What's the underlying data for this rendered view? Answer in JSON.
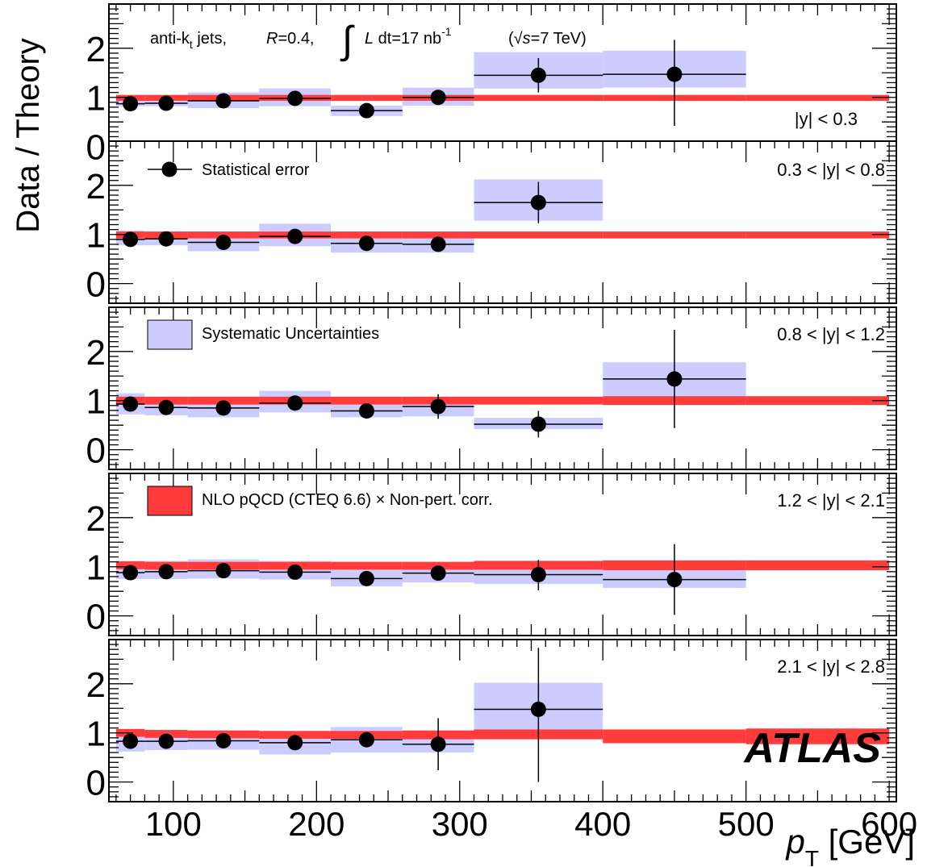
{
  "chart_data": {
    "type": "scatter",
    "ylabel": "Data / Theory",
    "xlabel_main": "p",
    "xlabel_sub": "T",
    "xlabel_unit": " [GeV]",
    "xlim": [
      55,
      605
    ],
    "ylim": [
      -0.4,
      2.9
    ],
    "x_ticks": [
      100,
      200,
      300,
      400,
      500,
      600
    ],
    "y_ticks": [
      0,
      1,
      2
    ],
    "info": {
      "jets_pre": "anti-k",
      "jets_sub": "t",
      "jets_post": " jets,",
      "r_sym": "R",
      "r_val": "=0.4,",
      "int_sym": "∫",
      "lumi_sym": "L",
      "lumi_val": " dt=17 nb",
      "lumi_exp": "-1",
      "energy_open": "(√",
      "energy_sym": "s",
      "energy_val": "=7 TeV)"
    },
    "legend": [
      {
        "name": "Statistical error",
        "marker": "circle"
      },
      {
        "name": "Systematic Uncertainties",
        "marker": "box",
        "color": "#ccccff"
      },
      {
        "name": "NLO pQCD (CTEQ 6.6) × Non-pert. corr.",
        "marker": "box",
        "color": "#ff3b3b"
      }
    ],
    "watermark": "ATLAS",
    "colors": {
      "systematic": "#ccccff",
      "theory": "#ff3b3b",
      "data": "#000000"
    },
    "bins": [
      [
        60,
        80
      ],
      [
        80,
        110
      ],
      [
        110,
        160
      ],
      [
        160,
        210
      ],
      [
        210,
        260
      ],
      [
        260,
        310
      ],
      [
        310,
        400
      ],
      [
        400,
        500
      ],
      [
        500,
        600
      ]
    ],
    "panels": [
      {
        "rapidity": "|y| < 0.3",
        "data": [
          {
            "x": 70,
            "y": 0.87,
            "xlo": 60,
            "xhi": 80,
            "stat_lo": 0.08,
            "stat_hi": 0.08,
            "sys_lo": 0.82,
            "sys_hi": 0.93
          },
          {
            "x": 95,
            "y": 0.88,
            "xlo": 80,
            "xhi": 110,
            "stat_lo": 0.05,
            "stat_hi": 0.05,
            "sys_lo": 0.82,
            "sys_hi": 0.95
          },
          {
            "x": 135,
            "y": 0.93,
            "xlo": 110,
            "xhi": 160,
            "stat_lo": 0.05,
            "stat_hi": 0.05,
            "sys_lo": 0.78,
            "sys_hi": 1.1
          },
          {
            "x": 185,
            "y": 0.98,
            "xlo": 160,
            "xhi": 210,
            "stat_lo": 0.05,
            "stat_hi": 0.05,
            "sys_lo": 0.82,
            "sys_hi": 1.18
          },
          {
            "x": 235,
            "y": 0.73,
            "xlo": 210,
            "xhi": 260,
            "stat_lo": 0.05,
            "stat_hi": 0.05,
            "sys_lo": 0.62,
            "sys_hi": 0.83
          },
          {
            "x": 285,
            "y": 1.0,
            "xlo": 260,
            "xhi": 310,
            "stat_lo": 0.1,
            "stat_hi": 0.1,
            "sys_lo": 0.83,
            "sys_hi": 1.2
          },
          {
            "x": 355,
            "y": 1.45,
            "xlo": 310,
            "xhi": 400,
            "stat_lo": 0.35,
            "stat_hi": 0.35,
            "sys_lo": 1.18,
            "sys_hi": 1.92
          },
          {
            "x": 450,
            "y": 1.47,
            "xlo": 400,
            "xhi": 500,
            "stat_lo": 1.05,
            "stat_hi": 0.7,
            "sys_lo": 1.2,
            "sys_hi": 1.95
          }
        ],
        "theory": [
          {
            "xlo": 60,
            "xhi": 80,
            "y": 0.99,
            "half": 0.06
          },
          {
            "xlo": 80,
            "xhi": 110,
            "y": 0.99,
            "half": 0.06
          },
          {
            "xlo": 110,
            "xhi": 160,
            "y": 0.99,
            "half": 0.06
          },
          {
            "xlo": 160,
            "xhi": 210,
            "y": 0.99,
            "half": 0.06
          },
          {
            "xlo": 210,
            "xhi": 260,
            "y": 0.99,
            "half": 0.06
          },
          {
            "xlo": 260,
            "xhi": 310,
            "y": 0.99,
            "half": 0.06
          },
          {
            "xlo": 310,
            "xhi": 400,
            "y": 0.99,
            "half": 0.06
          },
          {
            "xlo": 400,
            "xhi": 500,
            "y": 0.99,
            "half": 0.06
          },
          {
            "xlo": 500,
            "xhi": 600,
            "y": 0.99,
            "half": 0.06
          }
        ]
      },
      {
        "rapidity": "0.3 < |y| < 0.8",
        "data": [
          {
            "x": 70,
            "y": 0.9,
            "xlo": 60,
            "xhi": 80,
            "stat_lo": 0.06,
            "stat_hi": 0.06,
            "sys_lo": 0.78,
            "sys_hi": 1.08
          },
          {
            "x": 95,
            "y": 0.91,
            "xlo": 80,
            "xhi": 110,
            "stat_lo": 0.05,
            "stat_hi": 0.05,
            "sys_lo": 0.78,
            "sys_hi": 1.05
          },
          {
            "x": 135,
            "y": 0.84,
            "xlo": 110,
            "xhi": 160,
            "stat_lo": 0.05,
            "stat_hi": 0.05,
            "sys_lo": 0.66,
            "sys_hi": 1.0
          },
          {
            "x": 185,
            "y": 0.96,
            "xlo": 160,
            "xhi": 210,
            "stat_lo": 0.05,
            "stat_hi": 0.05,
            "sys_lo": 0.76,
            "sys_hi": 1.22
          },
          {
            "x": 235,
            "y": 0.82,
            "xlo": 210,
            "xhi": 260,
            "stat_lo": 0.06,
            "stat_hi": 0.06,
            "sys_lo": 0.63,
            "sys_hi": 0.98
          },
          {
            "x": 285,
            "y": 0.8,
            "xlo": 260,
            "xhi": 310,
            "stat_lo": 0.1,
            "stat_hi": 0.1,
            "sys_lo": 0.63,
            "sys_hi": 0.96
          },
          {
            "x": 355,
            "y": 1.65,
            "xlo": 310,
            "xhi": 400,
            "stat_lo": 0.42,
            "stat_hi": 0.42,
            "sys_lo": 1.28,
            "sys_hi": 2.12
          }
        ],
        "theory": [
          {
            "xlo": 60,
            "xhi": 80,
            "y": 0.99,
            "half": 0.07
          },
          {
            "xlo": 80,
            "xhi": 110,
            "y": 0.99,
            "half": 0.07
          },
          {
            "xlo": 110,
            "xhi": 160,
            "y": 0.99,
            "half": 0.07
          },
          {
            "xlo": 160,
            "xhi": 210,
            "y": 0.99,
            "half": 0.07
          },
          {
            "xlo": 210,
            "xhi": 260,
            "y": 0.99,
            "half": 0.07
          },
          {
            "xlo": 260,
            "xhi": 310,
            "y": 0.99,
            "half": 0.07
          },
          {
            "xlo": 310,
            "xhi": 400,
            "y": 0.99,
            "half": 0.07
          },
          {
            "xlo": 400,
            "xhi": 500,
            "y": 0.99,
            "half": 0.07
          },
          {
            "xlo": 500,
            "xhi": 600,
            "y": 0.99,
            "half": 0.07
          }
        ]
      },
      {
        "rapidity": "0.8 < |y| < 1.2",
        "data": [
          {
            "x": 70,
            "y": 0.93,
            "xlo": 60,
            "xhi": 80,
            "stat_lo": 0.06,
            "stat_hi": 0.06,
            "sys_lo": 0.72,
            "sys_hi": 1.15
          },
          {
            "x": 95,
            "y": 0.86,
            "xlo": 80,
            "xhi": 110,
            "stat_lo": 0.05,
            "stat_hi": 0.05,
            "sys_lo": 0.7,
            "sys_hi": 1.05
          },
          {
            "x": 135,
            "y": 0.85,
            "xlo": 110,
            "xhi": 160,
            "stat_lo": 0.05,
            "stat_hi": 0.05,
            "sys_lo": 0.66,
            "sys_hi": 1.02
          },
          {
            "x": 185,
            "y": 0.95,
            "xlo": 160,
            "xhi": 210,
            "stat_lo": 0.05,
            "stat_hi": 0.05,
            "sys_lo": 0.76,
            "sys_hi": 1.2
          },
          {
            "x": 235,
            "y": 0.79,
            "xlo": 210,
            "xhi": 260,
            "stat_lo": 0.06,
            "stat_hi": 0.06,
            "sys_lo": 0.66,
            "sys_hi": 0.96
          },
          {
            "x": 285,
            "y": 0.88,
            "xlo": 260,
            "xhi": 310,
            "stat_lo": 0.25,
            "stat_hi": 0.25,
            "sys_lo": 0.68,
            "sys_hi": 1.05
          },
          {
            "x": 355,
            "y": 0.52,
            "xlo": 310,
            "xhi": 400,
            "stat_lo": 0.27,
            "stat_hi": 0.27,
            "sys_lo": 0.42,
            "sys_hi": 0.65
          },
          {
            "x": 450,
            "y": 1.44,
            "xlo": 400,
            "xhi": 500,
            "stat_lo": 1.0,
            "stat_hi": 1.0,
            "sys_lo": 1.08,
            "sys_hi": 1.78
          }
        ],
        "theory": [
          {
            "xlo": 60,
            "xhi": 80,
            "y": 1.0,
            "half": 0.08
          },
          {
            "xlo": 80,
            "xhi": 110,
            "y": 1.0,
            "half": 0.08
          },
          {
            "xlo": 110,
            "xhi": 160,
            "y": 1.0,
            "half": 0.08
          },
          {
            "xlo": 160,
            "xhi": 210,
            "y": 1.0,
            "half": 0.08
          },
          {
            "xlo": 210,
            "xhi": 260,
            "y": 1.0,
            "half": 0.08
          },
          {
            "xlo": 260,
            "xhi": 310,
            "y": 1.0,
            "half": 0.08
          },
          {
            "xlo": 310,
            "xhi": 400,
            "y": 1.0,
            "half": 0.08
          },
          {
            "xlo": 400,
            "xhi": 500,
            "y": 1.0,
            "half": 0.09
          },
          {
            "xlo": 500,
            "xhi": 600,
            "y": 1.0,
            "half": 0.09
          }
        ]
      },
      {
        "rapidity": "1.2 < |y| < 2.1",
        "data": [
          {
            "x": 70,
            "y": 0.88,
            "xlo": 60,
            "xhi": 80,
            "stat_lo": 0.05,
            "stat_hi": 0.05,
            "sys_lo": 0.75,
            "sys_hi": 1.12
          },
          {
            "x": 95,
            "y": 0.9,
            "xlo": 80,
            "xhi": 110,
            "stat_lo": 0.05,
            "stat_hi": 0.05,
            "sys_lo": 0.75,
            "sys_hi": 1.12
          },
          {
            "x": 135,
            "y": 0.92,
            "xlo": 110,
            "xhi": 160,
            "stat_lo": 0.05,
            "stat_hi": 0.05,
            "sys_lo": 0.76,
            "sys_hi": 1.15
          },
          {
            "x": 185,
            "y": 0.89,
            "xlo": 160,
            "xhi": 210,
            "stat_lo": 0.05,
            "stat_hi": 0.05,
            "sys_lo": 0.74,
            "sys_hi": 1.12
          },
          {
            "x": 235,
            "y": 0.76,
            "xlo": 210,
            "xhi": 260,
            "stat_lo": 0.06,
            "stat_hi": 0.06,
            "sys_lo": 0.6,
            "sys_hi": 0.95
          },
          {
            "x": 285,
            "y": 0.87,
            "xlo": 260,
            "xhi": 310,
            "stat_lo": 0.12,
            "stat_hi": 0.12,
            "sys_lo": 0.68,
            "sys_hi": 1.08
          },
          {
            "x": 355,
            "y": 0.84,
            "xlo": 310,
            "xhi": 400,
            "stat_lo": 0.32,
            "stat_hi": 0.3,
            "sys_lo": 0.65,
            "sys_hi": 1.05
          },
          {
            "x": 450,
            "y": 0.74,
            "xlo": 400,
            "xhi": 500,
            "stat_lo": 0.72,
            "stat_hi": 0.72,
            "sys_lo": 0.57,
            "sys_hi": 0.95
          }
        ],
        "theory": [
          {
            "xlo": 60,
            "xhi": 80,
            "y": 1.03,
            "half": 0.08
          },
          {
            "xlo": 80,
            "xhi": 110,
            "y": 1.02,
            "half": 0.08
          },
          {
            "xlo": 110,
            "xhi": 160,
            "y": 1.02,
            "half": 0.08
          },
          {
            "xlo": 160,
            "xhi": 210,
            "y": 1.02,
            "half": 0.08
          },
          {
            "xlo": 210,
            "xhi": 260,
            "y": 1.02,
            "half": 0.08
          },
          {
            "xlo": 260,
            "xhi": 310,
            "y": 1.02,
            "half": 0.08
          },
          {
            "xlo": 310,
            "xhi": 400,
            "y": 1.03,
            "half": 0.09
          },
          {
            "xlo": 400,
            "xhi": 500,
            "y": 1.03,
            "half": 0.1
          },
          {
            "xlo": 500,
            "xhi": 600,
            "y": 1.03,
            "half": 0.1
          }
        ]
      },
      {
        "rapidity": "2.1 < |y| < 2.8",
        "data": [
          {
            "x": 70,
            "y": 0.83,
            "xlo": 60,
            "xhi": 80,
            "stat_lo": 0.05,
            "stat_hi": 0.05,
            "sys_lo": 0.62,
            "sys_hi": 1.02
          },
          {
            "x": 95,
            "y": 0.83,
            "xlo": 80,
            "xhi": 110,
            "stat_lo": 0.05,
            "stat_hi": 0.05,
            "sys_lo": 0.65,
            "sys_hi": 1.0
          },
          {
            "x": 135,
            "y": 0.84,
            "xlo": 110,
            "xhi": 160,
            "stat_lo": 0.06,
            "stat_hi": 0.06,
            "sys_lo": 0.66,
            "sys_hi": 1.02
          },
          {
            "x": 185,
            "y": 0.8,
            "xlo": 160,
            "xhi": 210,
            "stat_lo": 0.08,
            "stat_hi": 0.08,
            "sys_lo": 0.56,
            "sys_hi": 1.0
          },
          {
            "x": 235,
            "y": 0.86,
            "xlo": 210,
            "xhi": 260,
            "stat_lo": 0.12,
            "stat_hi": 0.12,
            "sys_lo": 0.6,
            "sys_hi": 1.12
          },
          {
            "x": 285,
            "y": 0.77,
            "xlo": 260,
            "xhi": 310,
            "stat_lo": 0.53,
            "stat_hi": 0.53,
            "sys_lo": 0.6,
            "sys_hi": 0.92
          },
          {
            "x": 355,
            "y": 1.48,
            "xlo": 310,
            "xhi": 400,
            "stat_lo": 1.48,
            "stat_hi": 1.25,
            "sys_lo": 1.05,
            "sys_hi": 2.02
          }
        ],
        "theory": [
          {
            "xlo": 60,
            "xhi": 80,
            "y": 1.0,
            "half": 0.08
          },
          {
            "xlo": 80,
            "xhi": 110,
            "y": 0.98,
            "half": 0.08
          },
          {
            "xlo": 110,
            "xhi": 160,
            "y": 0.97,
            "half": 0.08
          },
          {
            "xlo": 160,
            "xhi": 210,
            "y": 0.96,
            "half": 0.08
          },
          {
            "xlo": 210,
            "xhi": 260,
            "y": 0.96,
            "half": 0.08
          },
          {
            "xlo": 260,
            "xhi": 310,
            "y": 0.96,
            "half": 0.09
          },
          {
            "xlo": 310,
            "xhi": 400,
            "y": 0.97,
            "half": 0.1
          },
          {
            "xlo": 400,
            "xhi": 500,
            "y": 0.93,
            "half": 0.14
          },
          {
            "xlo": 500,
            "xhi": 600,
            "y": 0.93,
            "half": 0.16
          }
        ]
      }
    ]
  }
}
